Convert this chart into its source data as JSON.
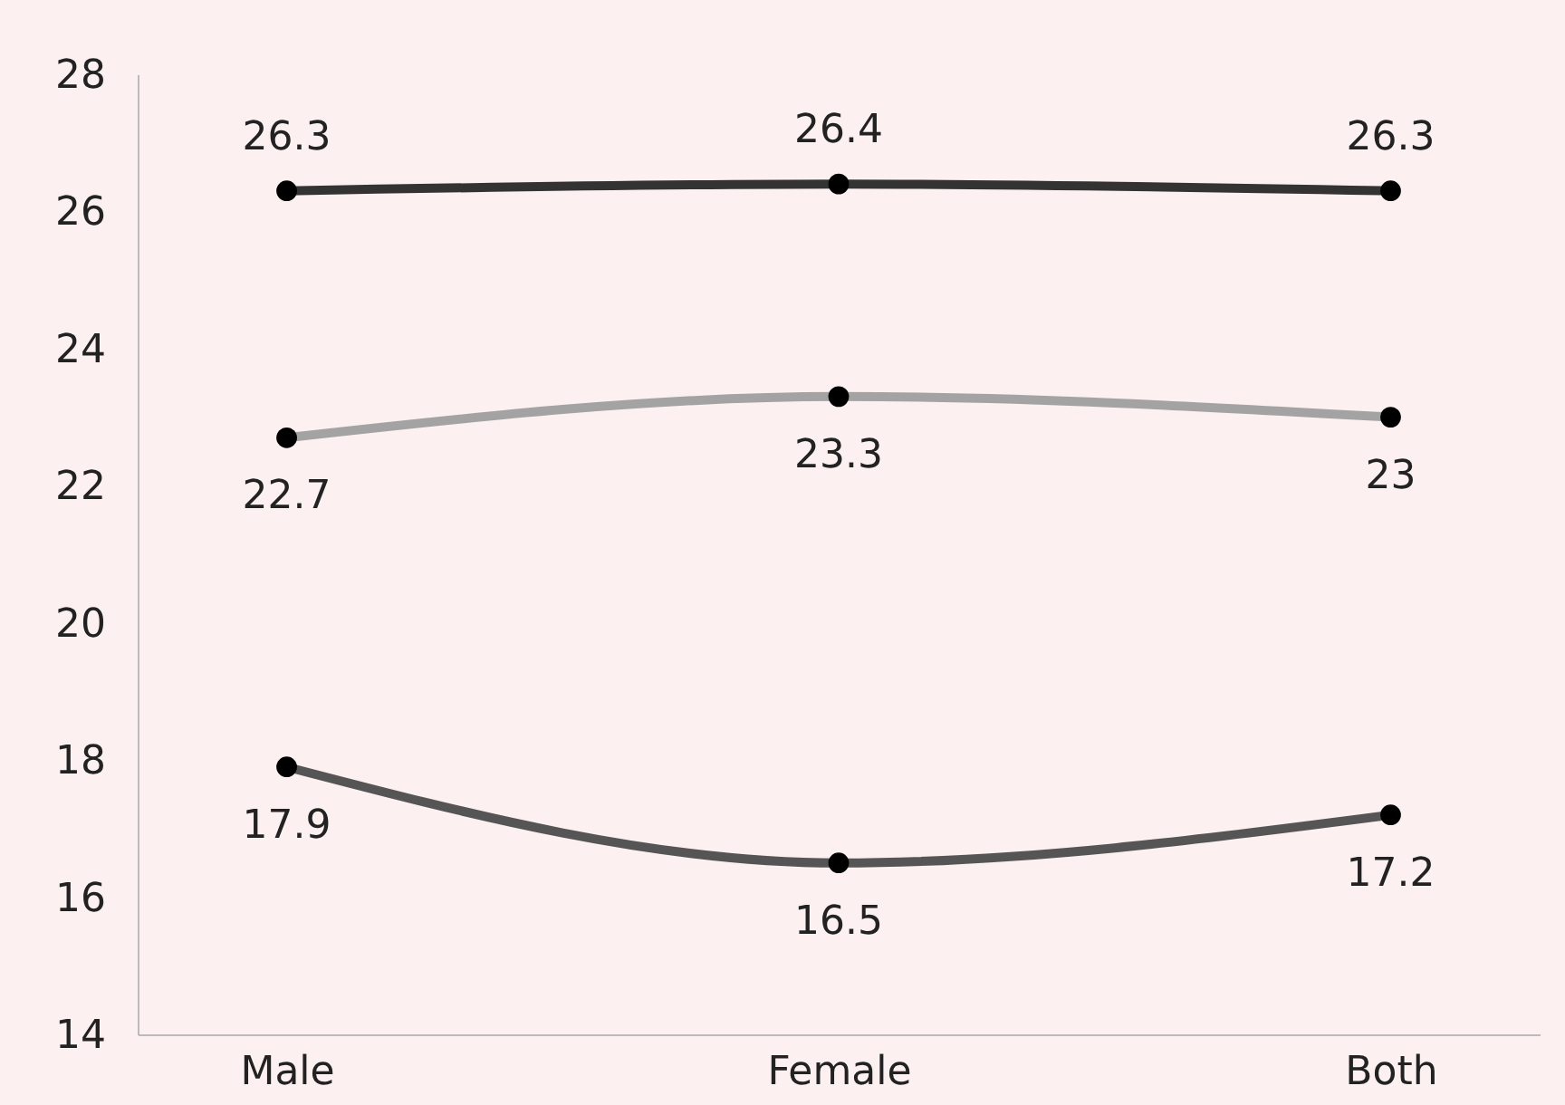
{
  "chart_data": {
    "type": "line",
    "categories": [
      "Male",
      "Female",
      "Both"
    ],
    "series": [
      {
        "color": "#333333",
        "values": [
          26.3,
          26.4,
          26.3
        ]
      },
      {
        "color": "#a3a3a3",
        "values": [
          22.7,
          23.3,
          23
        ]
      },
      {
        "color": "#555555",
        "values": [
          17.9,
          16.5,
          17.2
        ]
      }
    ],
    "ylim": [
      14,
      28
    ],
    "yticks": [
      14,
      16,
      18,
      20,
      22,
      24,
      26,
      28
    ],
    "grid": false,
    "legend": false,
    "marker": "circle",
    "line_style": "solid",
    "data_labels": true
  }
}
